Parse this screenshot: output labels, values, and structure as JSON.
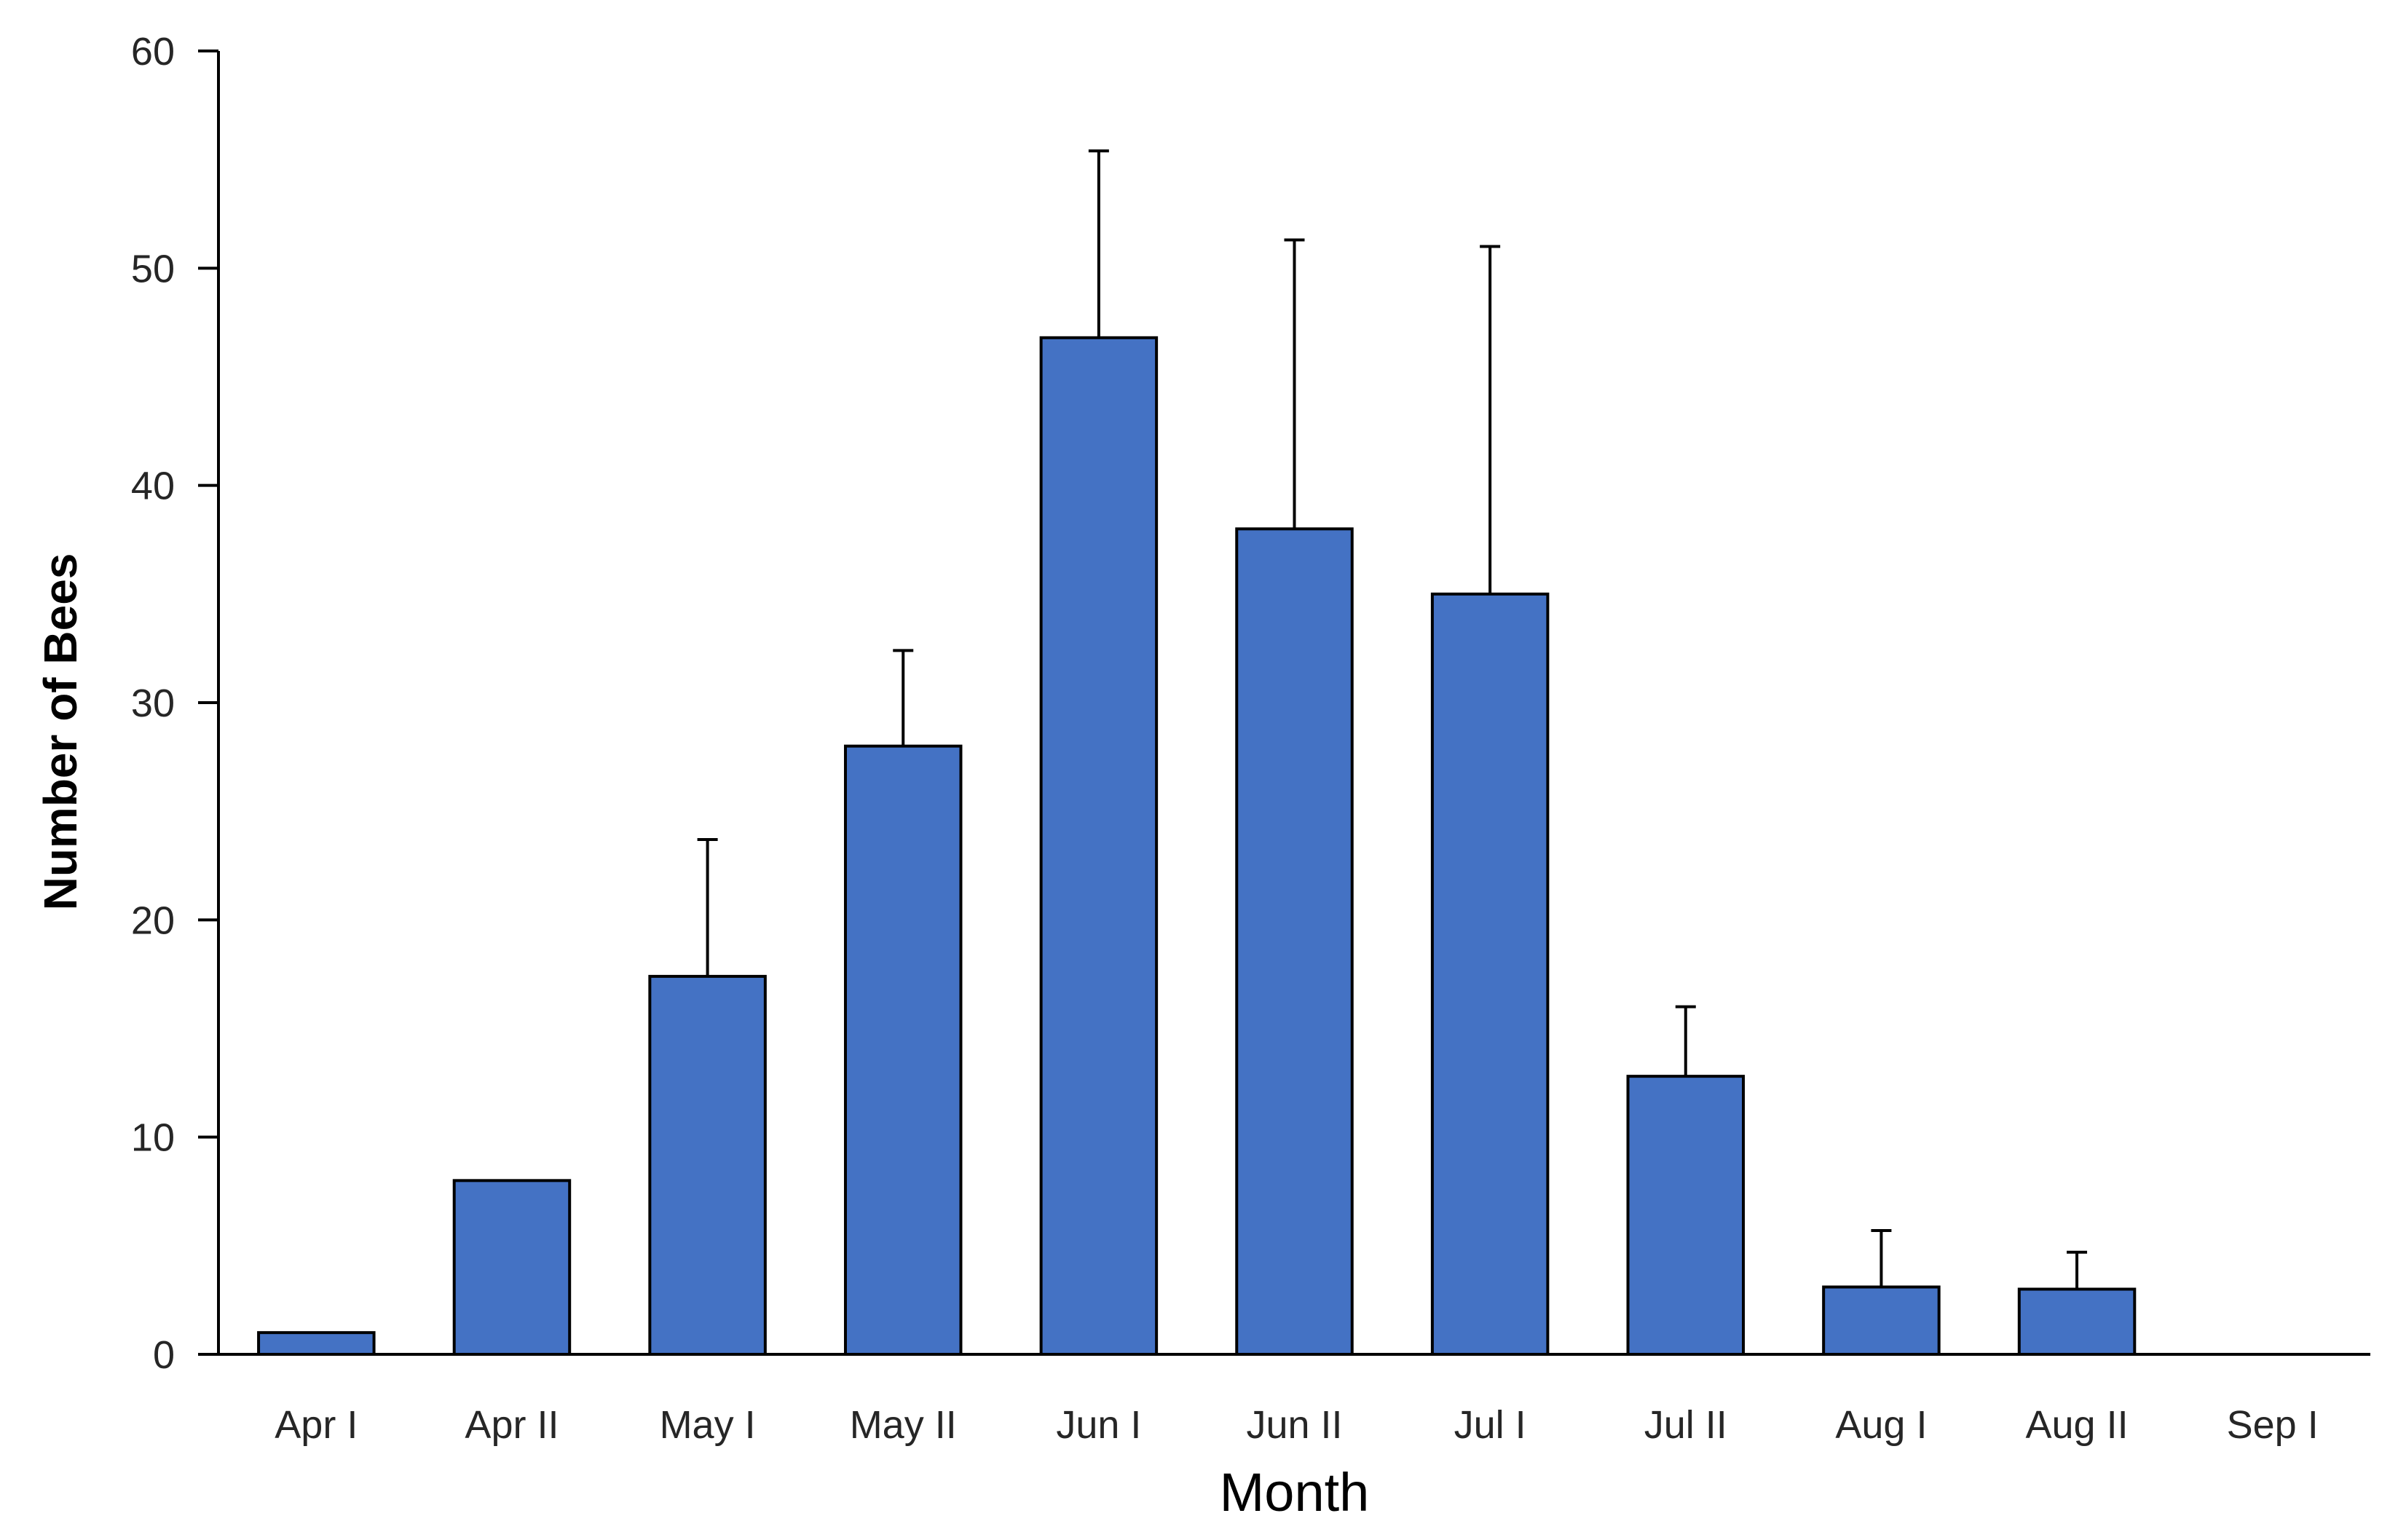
{
  "chart_data": {
    "type": "bar",
    "title": "",
    "xlabel": "Month",
    "ylabel": "Number of Bees",
    "categories": [
      "Apr I",
      "Apr II",
      "May I",
      "May II",
      "Jun I",
      "Jun II",
      "Jul I",
      "Jul II",
      "Aug I",
      "Aug II",
      "Sep I"
    ],
    "values": [
      1,
      8,
      17.4,
      28,
      46.8,
      38,
      35,
      12.8,
      3.1,
      3,
      0
    ],
    "error_upper": [
      0,
      0,
      6.3,
      4.4,
      8.6,
      13.3,
      16,
      3.2,
      2.6,
      1.7,
      0
    ],
    "ylim": [
      0,
      60
    ],
    "yticks": [
      0,
      10,
      20,
      30,
      40,
      50,
      60
    ],
    "grid": false,
    "legend": "none",
    "colors": {
      "bar_fill": "#4472C4",
      "bar_edge": "#000000",
      "axis": "#000000"
    }
  }
}
